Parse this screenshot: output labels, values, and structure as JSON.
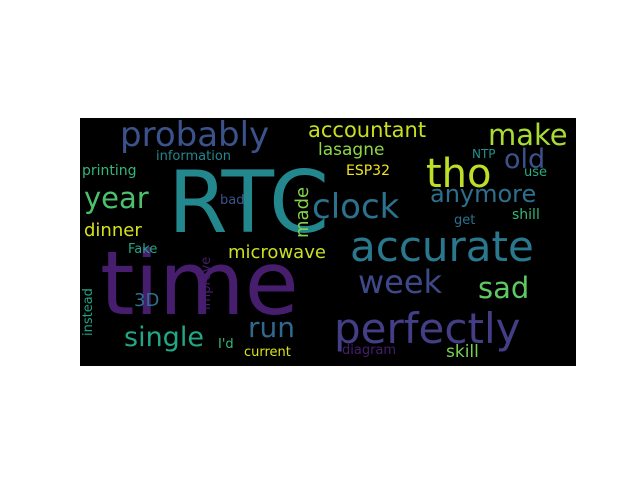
{
  "words": {
    "time": "time",
    "rtc": "RTC",
    "accurate": "accurate",
    "perfectly": "perfectly",
    "probably": "probably",
    "tho": "tho",
    "clock": "clock",
    "week": "week",
    "anymore": "anymore",
    "run": "run",
    "single": "single",
    "year": "year",
    "sad": "sad",
    "make": "make",
    "old": "old",
    "accountant": "accountant",
    "lasagne": "lasagne",
    "microwave": "microwave",
    "made": "made",
    "dinner": "dinner",
    "information": "information",
    "printing": "printing",
    "esp32": "ESP32",
    "ntp": "NTP",
    "use": "use",
    "get": "get",
    "shill": "shill",
    "bad": "bad",
    "fake": "Fake",
    "improve": "improve",
    "three_d": "3D",
    "instead": "instead",
    "id": "I'd",
    "current": "current",
    "diagram": "diagram",
    "skill": "skill"
  },
  "colors": {
    "background": "#000000",
    "page": "#ffffff"
  }
}
